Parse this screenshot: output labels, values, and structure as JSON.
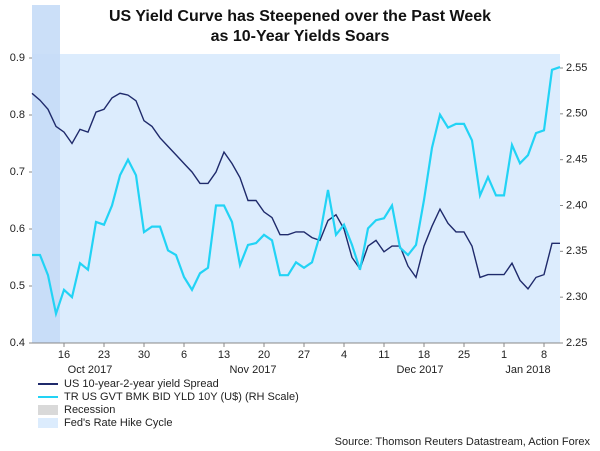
{
  "chart_data": {
    "type": "line",
    "title": [
      "US Yield Curve has Steepened over the Past Week",
      "as 10-Year Yields Soars"
    ],
    "categories": [
      null,
      null,
      null,
      null,
      "16",
      null,
      null,
      null,
      null,
      "23",
      null,
      null,
      null,
      null,
      "30",
      null,
      null,
      null,
      null,
      "6",
      null,
      null,
      null,
      null,
      "13",
      null,
      null,
      null,
      null,
      "20",
      null,
      null,
      null,
      null,
      "27",
      null,
      null,
      null,
      null,
      "4",
      null,
      null,
      null,
      null,
      "11",
      null,
      null,
      null,
      null,
      "18",
      null,
      null,
      null,
      null,
      "25",
      null,
      null,
      null,
      null,
      "1",
      null,
      null,
      null,
      null,
      "8",
      null,
      null
    ],
    "x_group_labels": [
      "Oct 2017",
      "Nov 2017",
      "Dec 2017",
      "Jan 2018"
    ],
    "series": [
      {
        "name": "US 10-year-2-year yield Spread",
        "color": "#1f2a6b",
        "axis": "y",
        "values": [
          0.838,
          0.826,
          0.81,
          0.78,
          0.77,
          0.75,
          0.775,
          0.77,
          0.805,
          0.81,
          0.83,
          0.838,
          0.835,
          0.825,
          0.79,
          0.78,
          0.76,
          0.745,
          0.73,
          0.715,
          0.7,
          0.68,
          0.68,
          0.7,
          0.735,
          0.715,
          0.69,
          0.65,
          0.65,
          0.63,
          0.62,
          0.59,
          0.59,
          0.595,
          0.595,
          0.585,
          0.58,
          0.615,
          0.625,
          0.6,
          0.55,
          0.53,
          0.57,
          0.58,
          0.56,
          0.57,
          0.57,
          0.535,
          0.515,
          0.57,
          0.605,
          0.635,
          0.61,
          0.595,
          0.595,
          0.57,
          0.515,
          0.52,
          0.52,
          0.52,
          0.54,
          0.51,
          0.495,
          0.515,
          0.52,
          0.575,
          0.575
        ]
      },
      {
        "name": "TR US GVT BMK BID YLD 10Y (U$) (RH Scale)",
        "color": "#22d3f5",
        "axis": "y2",
        "values": [
          2.346,
          2.346,
          2.324,
          2.282,
          2.308,
          2.3,
          2.337,
          2.33,
          2.382,
          2.379,
          2.4,
          2.433,
          2.45,
          2.433,
          2.371,
          2.377,
          2.377,
          2.351,
          2.346,
          2.322,
          2.308,
          2.326,
          2.332,
          2.4,
          2.4,
          2.382,
          2.335,
          2.357,
          2.359,
          2.368,
          2.362,
          2.324,
          2.324,
          2.338,
          2.332,
          2.338,
          2.368,
          2.417,
          2.368,
          2.379,
          2.357,
          2.33,
          2.375,
          2.384,
          2.386,
          2.4,
          2.354,
          2.346,
          2.357,
          2.406,
          2.463,
          2.499,
          2.485,
          2.489,
          2.489,
          2.471,
          2.411,
          2.431,
          2.411,
          2.411,
          2.466,
          2.446,
          2.455,
          2.479,
          2.482,
          2.548,
          2.551
        ]
      }
    ],
    "shading": [
      {
        "name": "Recession",
        "color": "#d9d9d9"
      },
      {
        "name": "Fed's Rate Hike Cycle",
        "color": "#dcecfd"
      }
    ],
    "ylim": [
      0.4,
      0.9
    ],
    "yticks": [
      0.4,
      0.5,
      0.6,
      0.7,
      0.8,
      0.9
    ],
    "y2lim": [
      2.25,
      2.55
    ],
    "y2ticks": [
      2.25,
      {
        "value": 2.3,
        "label": "2.30"
      },
      2.35,
      {
        "value": 2.4,
        "label": "2.40"
      },
      2.45,
      {
        "value": 2.5,
        "label": "2.50"
      },
      2.55
    ],
    "source": "Source: Thomson Reuters Datastream, Action Forex"
  }
}
